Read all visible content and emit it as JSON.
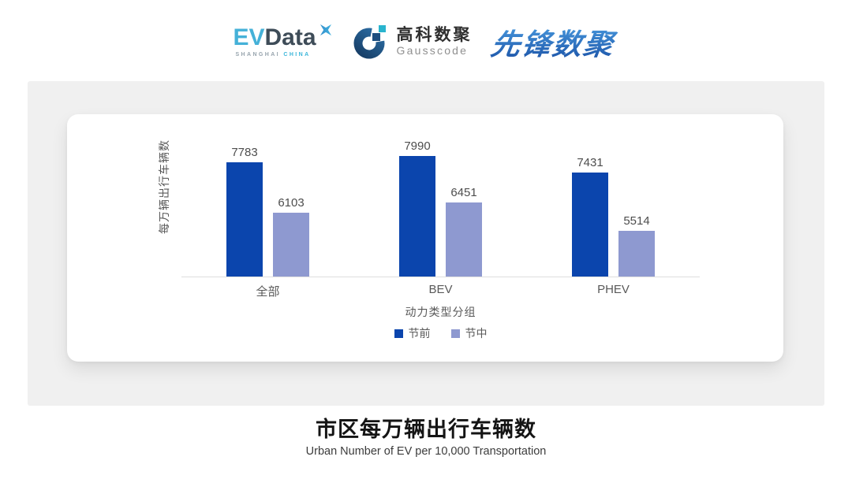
{
  "header": {
    "evdata_logo": {
      "ev": "EV",
      "data": "Data",
      "tagline_left": "SHANGHAI",
      "tagline_right": "CHINA",
      "ev_color": "#45b1d8",
      "data_color": "#3e4c58"
    },
    "gausscode_logo": {
      "cn": "高科数聚",
      "en": "Gausscode",
      "mark_color": "#1e4f80",
      "accent_color": "#29b4ce"
    },
    "xianfeng_logo": {
      "text": "先锋数聚",
      "color": "#2a6fc0"
    }
  },
  "chart_data": {
    "type": "bar",
    "categories": [
      "全部",
      "BEV",
      "PHEV"
    ],
    "series": [
      {
        "name": "节前",
        "color": "#0b45ad",
        "values": [
          7783,
          7990,
          7431
        ]
      },
      {
        "name": "节中",
        "color": "#8e99d0",
        "values": [
          6103,
          6451,
          5514
        ]
      }
    ],
    "xlabel": "动力类型分组",
    "ylabel": "每万辆出行车辆数",
    "ylim": [
      4000,
      8400
    ],
    "grid": false,
    "value_labels": true,
    "legend_position": "bottom",
    "axis_line_color": "#dedede"
  },
  "caption": {
    "title": "市区每万辆出行车辆数",
    "subtitle": "Urban Number of EV per 10,000 Transportation"
  },
  "colors": {
    "panel_bg": "#f0f0f0",
    "card_bg": "#ffffff",
    "text_secondary": "#595959",
    "value_label": "#4d4d4d"
  }
}
